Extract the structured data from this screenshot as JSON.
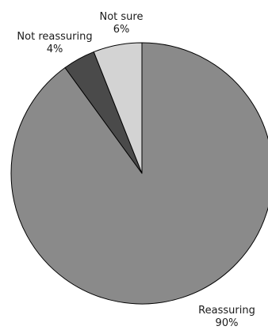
{
  "chart_data": {
    "type": "pie",
    "slices": [
      {
        "label": "Reassuring",
        "value": 90,
        "value_label": "90%",
        "color": "#8a8a8a"
      },
      {
        "label": "Not reassuring",
        "value": 4,
        "value_label": "4%",
        "color": "#4a4a4a"
      },
      {
        "label": "Not sure",
        "value": 6,
        "value_label": "6%",
        "color": "#d3d3d3"
      }
    ],
    "start_angle_deg": 0,
    "direction": "clockwise",
    "stroke_color": "#000000"
  }
}
